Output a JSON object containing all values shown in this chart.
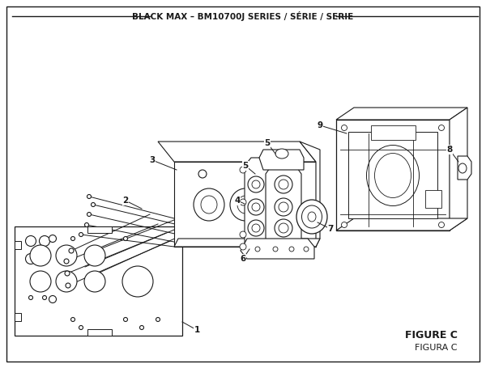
{
  "title": "BLACK MAX – BM10700J SERIES / SÉRIE / SERIE",
  "figure_label": "FIGURE C",
  "figura_label": "FIGURA C",
  "background_color": "#ffffff",
  "line_color": "#1a1a1a"
}
